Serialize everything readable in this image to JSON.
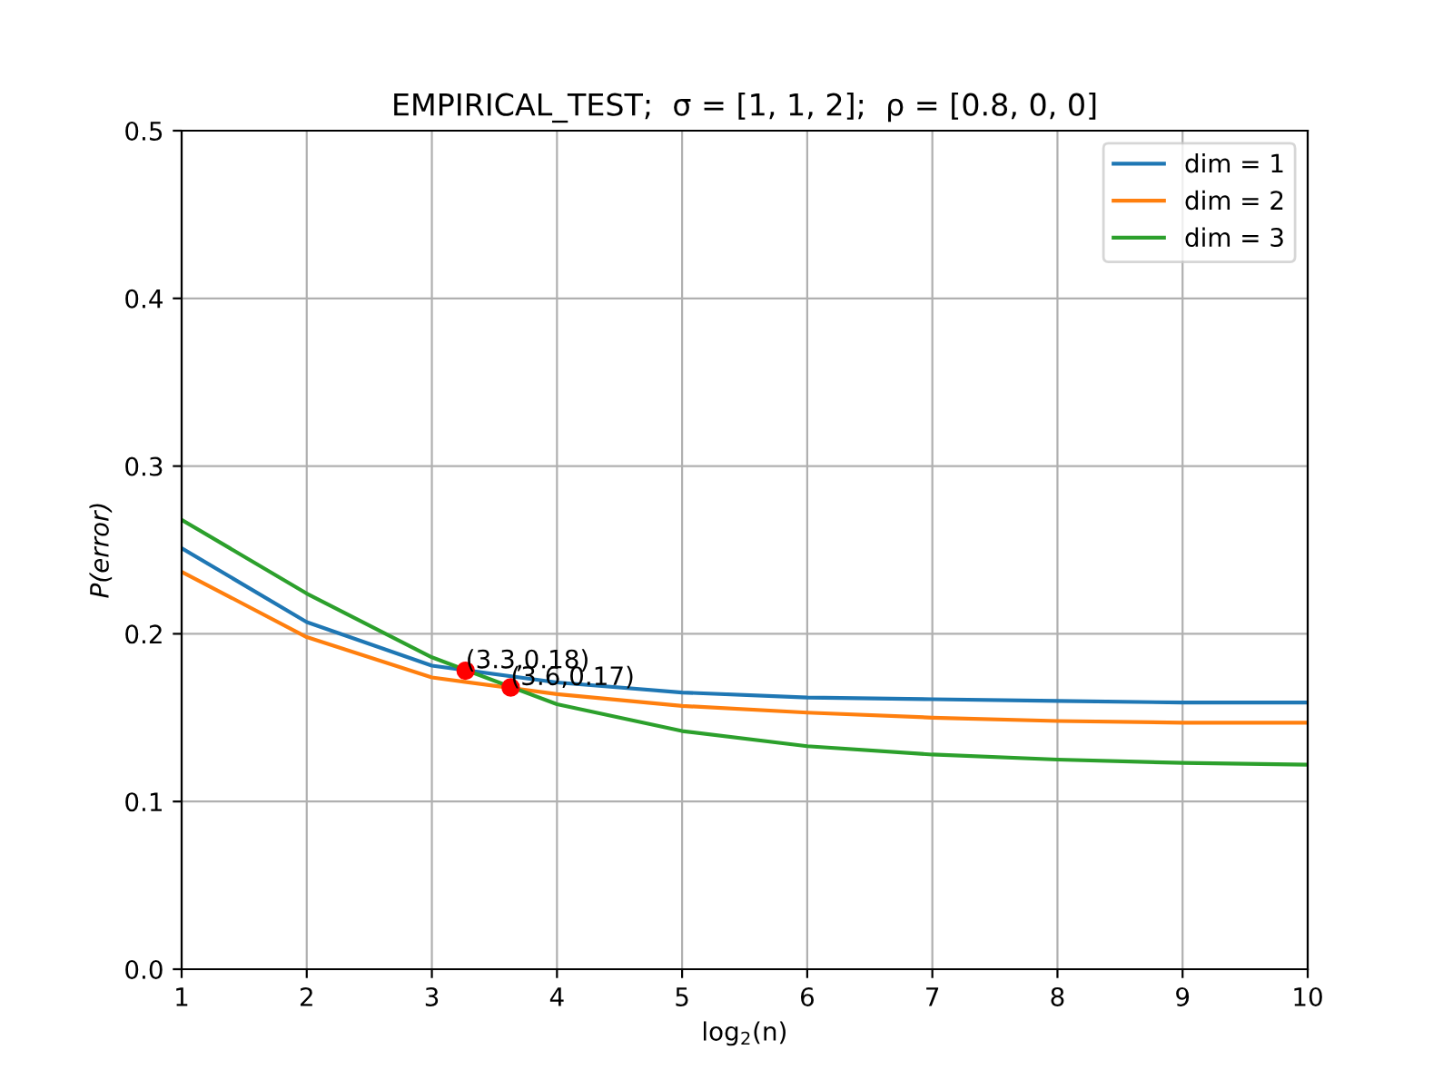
{
  "chart_data": {
    "type": "line",
    "title": "EMPIRICAL_TEST;  σ = [1, 1, 2];  ρ = [0.8, 0, 0]",
    "xlabel": "log$_{2}$(n)",
    "ylabel": "P(error)",
    "x": [
      1,
      2,
      3,
      4,
      5,
      6,
      7,
      8,
      9,
      10
    ],
    "series": [
      {
        "name": "dim = 1",
        "color": "#1f77b4",
        "values": [
          0.251,
          0.207,
          0.181,
          0.171,
          0.165,
          0.162,
          0.161,
          0.16,
          0.159,
          0.159
        ]
      },
      {
        "name": "dim = 2",
        "color": "#ff7f0e",
        "values": [
          0.237,
          0.198,
          0.174,
          0.164,
          0.157,
          0.153,
          0.15,
          0.148,
          0.147,
          0.147
        ]
      },
      {
        "name": "dim = 3",
        "color": "#2ca02c",
        "values": [
          0.268,
          0.224,
          0.186,
          0.158,
          0.142,
          0.133,
          0.128,
          0.125,
          0.123,
          0.122
        ]
      },
      {
        "type": "scatter",
        "color": "#ff0000",
        "x": [
          3.27,
          3.63
        ],
        "values": [
          0.178,
          0.168
        ],
        "value_labels": [
          "(3.3,0.18)",
          "(3.6,0.17)"
        ]
      }
    ],
    "xlim": [
      1,
      10
    ],
    "xticks": [
      1,
      2,
      3,
      4,
      5,
      6,
      7,
      8,
      9,
      10
    ],
    "ylim": [
      0,
      0.5
    ],
    "yticks": [
      {
        "value": 0,
        "label": "0.0"
      },
      0.1,
      0.2,
      0.3,
      0.4,
      0.5
    ],
    "grid": true,
    "legend": "top right"
  }
}
